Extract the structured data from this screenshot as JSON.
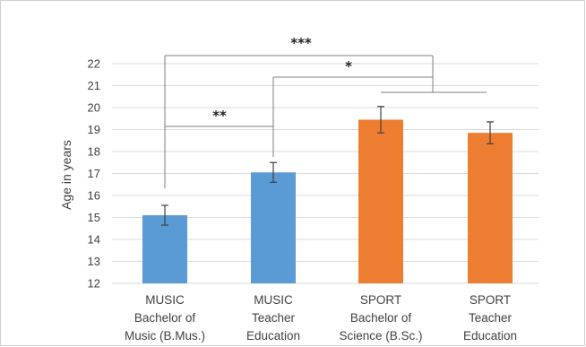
{
  "chart_data": {
    "type": "bar",
    "title": "",
    "ylabel": "Age in years",
    "xlabel": "",
    "ylim": [
      12,
      22
    ],
    "yticks": [
      12,
      13,
      14,
      15,
      16,
      17,
      18,
      19,
      20,
      21,
      22
    ],
    "grid": true,
    "categories": [
      [
        "MUSIC",
        "Bachelor of",
        "Music (B.Mus.)"
      ],
      [
        "MUSIC",
        "Teacher",
        "Education"
      ],
      [
        "SPORT",
        "Bachelor of",
        "Science (B.Sc.)"
      ],
      [
        "SPORT",
        "Teacher",
        "Education"
      ]
    ],
    "values": [
      15.1,
      17.05,
      19.45,
      18.85
    ],
    "error": [
      0.45,
      0.45,
      0.6,
      0.5
    ],
    "bar_colors": [
      "#5b9bd5",
      "#5b9bd5",
      "#ed7d31",
      "#ed7d31"
    ],
    "significance": [
      {
        "label": "***",
        "between": [
          "MUSIC Bachelor of Music (B.Mus.)",
          "SPORT groups"
        ]
      },
      {
        "label": "*",
        "between": [
          "MUSIC Teacher Education",
          "SPORT groups"
        ]
      },
      {
        "label": "**",
        "between": [
          "MUSIC Bachelor of Music (B.Mus.)",
          "MUSIC Teacher Education"
        ]
      }
    ]
  }
}
